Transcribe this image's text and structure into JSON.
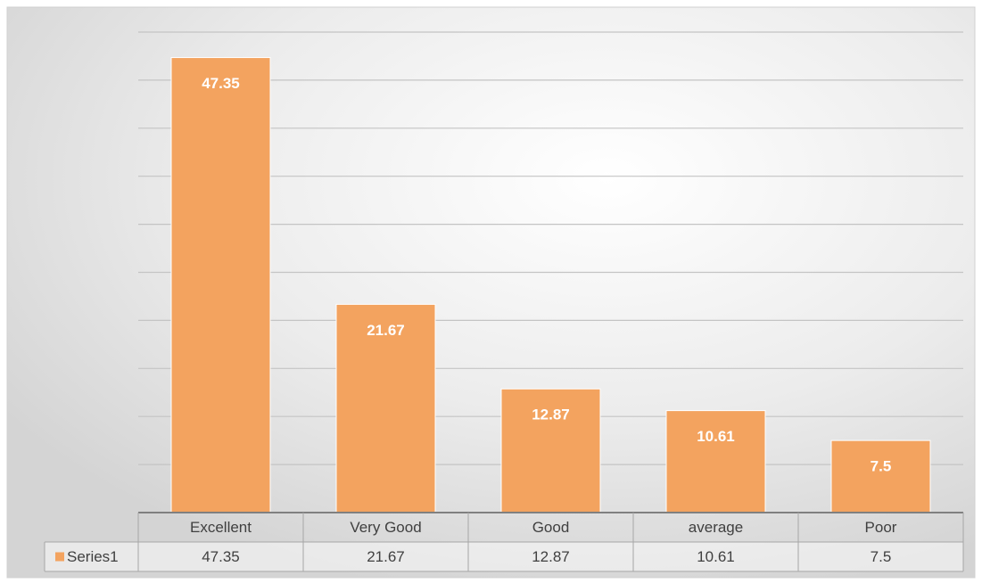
{
  "chart_data": {
    "type": "bar",
    "categories": [
      "Excellent",
      "Very Good",
      "Good",
      "average",
      "Poor"
    ],
    "series": [
      {
        "name": "Series1",
        "color": "#f3a35f",
        "values": [
          47.35,
          21.67,
          12.87,
          10.61,
          7.5
        ]
      }
    ],
    "ylim": [
      0,
      50
    ],
    "yticks": [
      0,
      5,
      10,
      15,
      20,
      25,
      30,
      35,
      40,
      45,
      50
    ],
    "grid": true,
    "data_table": true
  }
}
